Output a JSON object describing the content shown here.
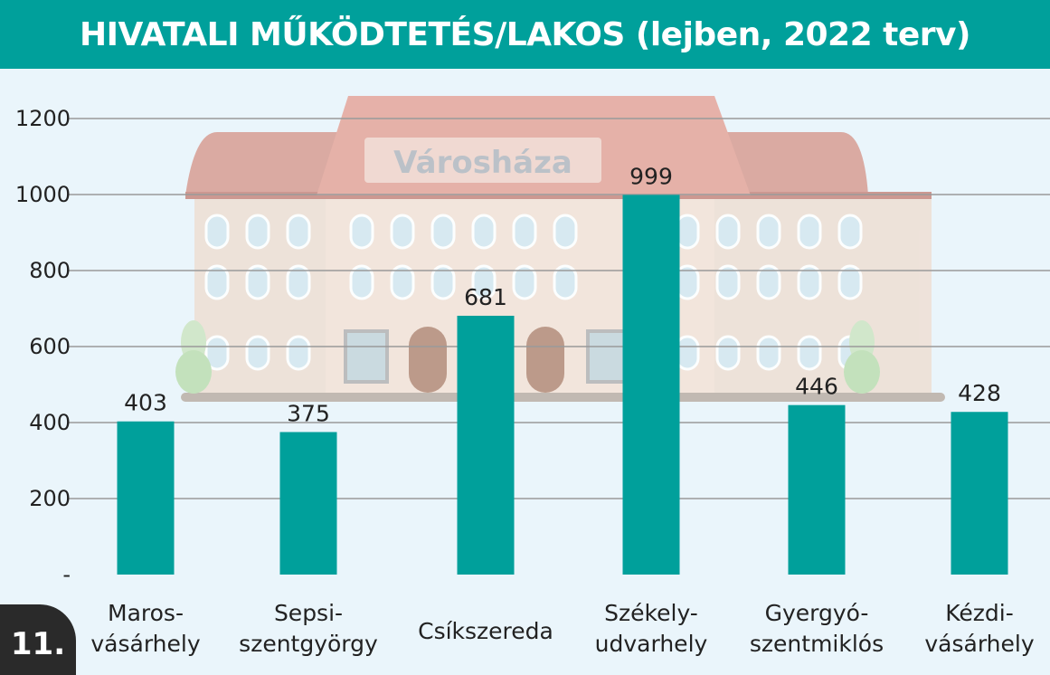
{
  "header": {
    "title": "HIVATALI MŰKÖDTETÉS/LAKOS (lejben, 2022 terv)"
  },
  "badge": {
    "number": "11."
  },
  "illustration": {
    "sign": "Városháza"
  },
  "colors": {
    "bar": "#00a09b",
    "header": "#00a09b",
    "background": "#eaf5fb",
    "grid": "#9a9a9a"
  },
  "chart_data": {
    "type": "bar",
    "title": "HIVATALI MŰKÖDTETÉS/LAKOS (lejben, 2022 terv)",
    "categories": [
      [
        "Maros-",
        "vásárhely"
      ],
      [
        "Sepsi-",
        "szentgyörgy"
      ],
      [
        "Csíkszereda"
      ],
      [
        "Székely-",
        "udvarhely"
      ],
      [
        "Gyergyó-",
        "szentmiklós"
      ],
      [
        "Kézdi-",
        "vásárhely"
      ]
    ],
    "values": [
      403,
      375,
      681,
      999,
      446,
      428
    ],
    "value_labels": [
      "403",
      "375",
      "681",
      "999",
      "446",
      "428"
    ],
    "ylim": [
      0,
      1200
    ],
    "yticks": [
      0,
      200,
      400,
      600,
      800,
      1000,
      1200
    ],
    "ytick_labels": [
      "-",
      "200",
      "400",
      "600",
      "800",
      "1000",
      "1200"
    ],
    "grid": true
  }
}
